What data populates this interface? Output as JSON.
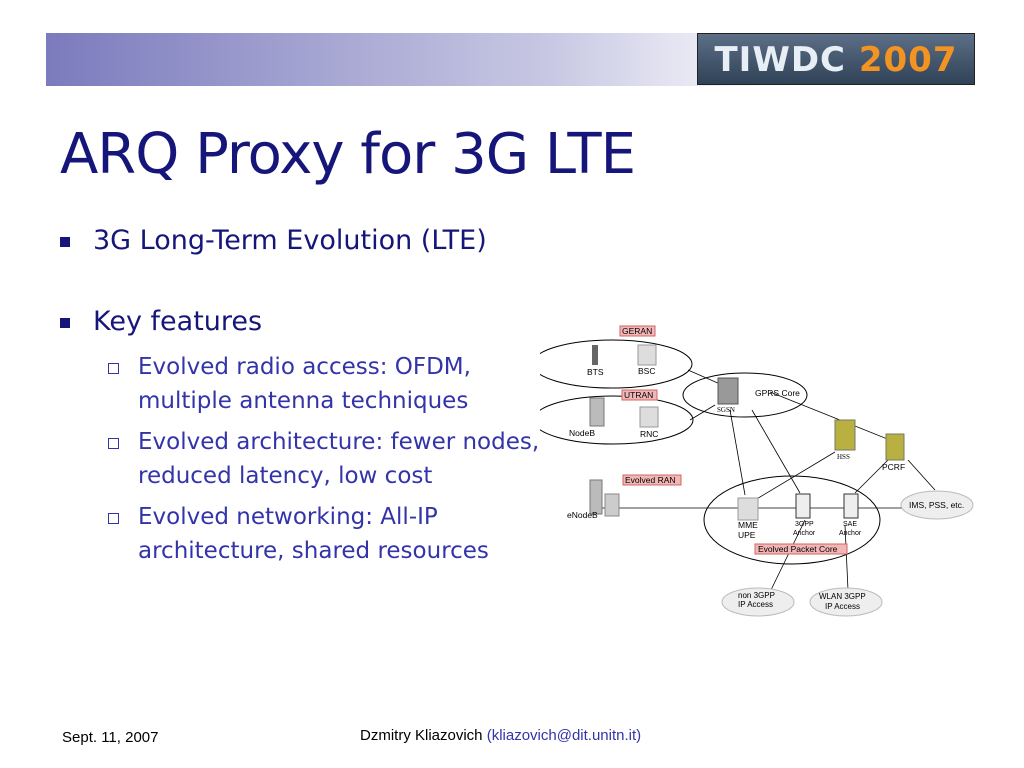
{
  "header": {
    "logo": "TIWDC",
    "logo_year": "2007"
  },
  "title": "ARQ Proxy for 3G LTE",
  "bullets": [
    {
      "text": "3G Long-Term Evolution (LTE)"
    },
    {
      "text": "Key features",
      "sub": [
        "Evolved radio access: OFDM, multiple antenna techniques",
        "Evolved architecture: fewer nodes, reduced latency, low cost",
        "Evolved networking: All-IP architecture, shared resources"
      ]
    }
  ],
  "diagram": {
    "geran": "GERAN",
    "bts": "BTS",
    "bsc": "BSC",
    "utran": "UTRAN",
    "nodeb": "NodeB",
    "rnc": "RNC",
    "sgsn": "SGSN",
    "gprs_core": "GPRS Core",
    "hss": "HSS",
    "pcrf": "PCRF",
    "evolved_ran": "Evolved RAN",
    "enodeb": "eNodeB",
    "mme_upe": [
      "MME",
      "UPE"
    ],
    "anchor_3gpp": [
      "3GPP",
      "Anchor"
    ],
    "sae_anchor": [
      "SAE",
      "Anchor"
    ],
    "epc": "Evolved Packet Core",
    "ims": "IMS, PSS, etc.",
    "non3gpp": [
      "non 3GPP",
      "IP Access"
    ],
    "wlan": [
      "WLAN 3GPP",
      "IP Access"
    ]
  },
  "footer": {
    "date": "Sept. 11, 2007",
    "author": "Dzmitry Kliazovich",
    "email": "(kliazovich@dit.unitn.it)"
  }
}
